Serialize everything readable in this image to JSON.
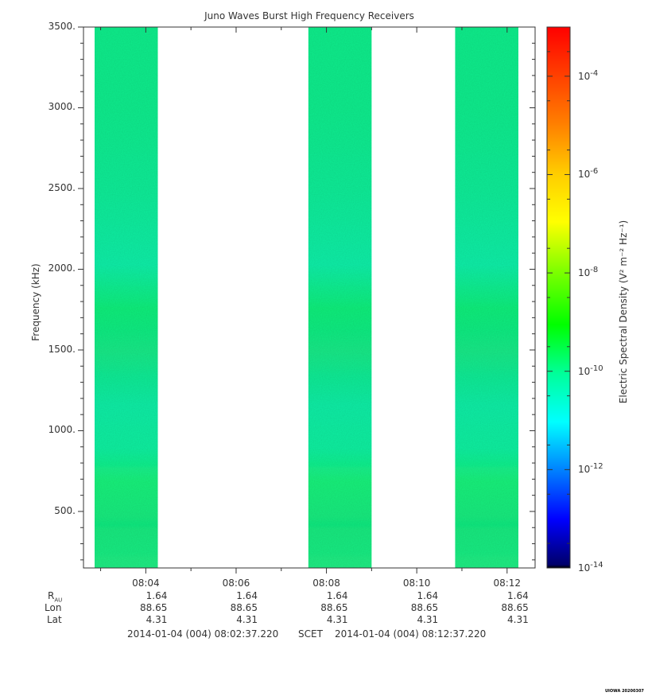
{
  "chart_data": {
    "type": "heatmap",
    "title": "Juno Waves Burst High Frequency Receivers",
    "ylabel": "Frequency (kHz)",
    "xlabel": "SCET",
    "ylim": [
      150,
      3500
    ],
    "y_ticks": [
      "500.",
      "1000.",
      "1500.",
      "2000.",
      "2500.",
      "3000.",
      "3500."
    ],
    "y_tick_values": [
      500,
      1000,
      1500,
      2000,
      2500,
      3000,
      3500
    ],
    "xlim": [
      "08:02:37.220",
      "08:12:37.220"
    ],
    "x_ticks": [
      "08:04",
      "08:06",
      "08:08",
      "08:10",
      "08:12"
    ],
    "x_tick_minutes": [
      4,
      6,
      8,
      10,
      12
    ],
    "time_start_label": "2014-01-04 (004) 08:02:37.220",
    "time_end_label": "2014-01-04 (004) 08:12:37.220",
    "data_blocks": [
      {
        "start": "08:02:52",
        "end": "08:04:16"
      },
      {
        "start": "08:07:36",
        "end": "08:09:00"
      },
      {
        "start": "08:10:51",
        "end": "08:12:15"
      }
    ],
    "colorbar": {
      "label": "Electric Spectral Density (V² m⁻² Hz⁻¹)",
      "scale": "log",
      "range_exponents": [
        -14,
        -3
      ],
      "ticks": [
        {
          "base": "10",
          "exp": "-14"
        },
        {
          "base": "10",
          "exp": "-12"
        },
        {
          "base": "10",
          "exp": "-10"
        },
        {
          "base": "10",
          "exp": "-8"
        },
        {
          "base": "10",
          "exp": "-6"
        },
        {
          "base": "10",
          "exp": "-4"
        }
      ]
    },
    "ephemeris": {
      "labels": {
        "rau": "R",
        "rau_sub": "AU",
        "lon": "Lon",
        "lat": "Lat"
      },
      "rau": [
        "1.64",
        "1.64",
        "1.64",
        "1.64",
        "1.64"
      ],
      "lon": [
        "88.65",
        "88.65",
        "88.65",
        "88.65",
        "88.65"
      ],
      "lat": [
        "4.31",
        "4.31",
        "4.31",
        "4.31",
        "4.31"
      ]
    },
    "stamp": "UIOWA 20200307",
    "colors": {
      "spectrogram_base": "#19eb7c",
      "axis": "#333333"
    }
  }
}
